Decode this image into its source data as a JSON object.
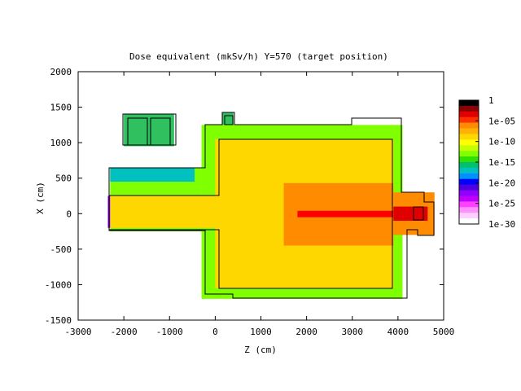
{
  "chart_data": {
    "type": "heatmap",
    "title": "Dose equivalent (mkSv/h) Y=570 (target position)",
    "xlabel": "Z (cm)",
    "ylabel": "X (cm)",
    "xlim": [
      -3000,
      5000
    ],
    "ylim": [
      -1500,
      2000
    ],
    "xticks": [
      "-3000",
      "-2000",
      "-1000",
      "0",
      "1000",
      "2000",
      "3000",
      "4000",
      "5000"
    ],
    "yticks": [
      "-1500",
      "-1000",
      "-500",
      "0",
      "500",
      "1000",
      "1500",
      "2000"
    ],
    "colorbar": {
      "labels": [
        "1",
        "1e-05",
        "1e-10",
        "1e-15",
        "1e-20",
        "1e-25",
        "1e-30"
      ],
      "colors": [
        "#000000",
        "#8b0000",
        "#e00000",
        "#ff3000",
        "#ff8c00",
        "#ffb000",
        "#ffd700",
        "#ffff00",
        "#c8ff00",
        "#80ff00",
        "#30e000",
        "#00c070",
        "#00c0c0",
        "#0090ff",
        "#0000ff",
        "#5000e0",
        "#9000ff",
        "#c000ff",
        "#ff40ff",
        "#ff90ff",
        "#ffd0ff",
        "#ffffff"
      ]
    },
    "regions": [
      {
        "z": [
          -2300,
          -300
        ],
        "x": [
          -250,
          650
        ],
        "color": "#80ff00"
      },
      {
        "z": [
          -300,
          4100
        ],
        "x": [
          -1200,
          1250
        ],
        "color": "#80ff00"
      },
      {
        "z": [
          -2300,
          0
        ],
        "x": [
          -200,
          250
        ],
        "color": "#ffd700"
      },
      {
        "z": [
          0,
          3900
        ],
        "x": [
          -1050,
          1050
        ],
        "color": "#ffd700"
      },
      {
        "z": [
          1500,
          3900
        ],
        "x": [
          -450,
          430
        ],
        "color": "#ff8c00"
      },
      {
        "z": [
          1800,
          3900
        ],
        "x": [
          -50,
          40
        ],
        "color": "#ff0000"
      },
      {
        "z": [
          3900,
          4800
        ],
        "x": [
          -300,
          300
        ],
        "color": "#ff8c00"
      },
      {
        "z": [
          3900,
          4650
        ],
        "x": [
          -100,
          100
        ],
        "color": "#e00000"
      },
      {
        "z": [
          -2300,
          -450
        ],
        "x": [
          450,
          650
        ],
        "color": "#00c0c0"
      },
      {
        "z": [
          -2000,
          -900
        ],
        "x": [
          950,
          1400
        ],
        "color": "#30c060"
      },
      {
        "z": [
          150,
          400
        ],
        "x": [
          1250,
          1420
        ],
        "color": "#30c060"
      },
      {
        "z": [
          -2350,
          -2300
        ],
        "x": [
          -200,
          250
        ],
        "color": "#9000ff"
      }
    ]
  }
}
